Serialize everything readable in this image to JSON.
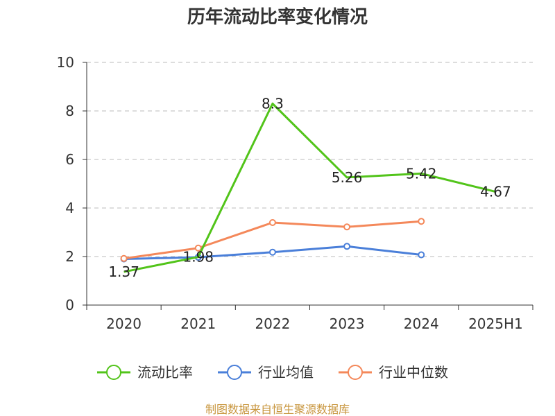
{
  "colors": {
    "current_ratio": "#52c41a",
    "industry_mean": "#4a7fd9",
    "industry_median": "#f4885a",
    "axis": "#333333",
    "grid": "#bbbbbb",
    "source": "#c8963e"
  },
  "source_text": "制图数据来自恒生聚源数据库",
  "chart_data": {
    "type": "line",
    "title": "历年流动比率变化情况",
    "xlabel": "",
    "ylabel": "",
    "categories": [
      "2020",
      "2021",
      "2022",
      "2023",
      "2024",
      "2025H1"
    ],
    "ylim": [
      0,
      10
    ],
    "yticks": [
      0,
      2,
      4,
      6,
      8,
      10
    ],
    "grid": true,
    "legend_position": "bottom",
    "series": [
      {
        "name": "流动比率",
        "values": [
          1.37,
          1.98,
          8.3,
          5.26,
          5.42,
          4.67
        ],
        "labels": [
          "1.37",
          "1.98",
          "8.3",
          "5.26",
          "5.42",
          "4.67"
        ],
        "color": "#52c41a",
        "markers": false
      },
      {
        "name": "行业均值",
        "values": [
          1.9,
          1.97,
          2.18,
          2.42,
          2.07,
          null
        ],
        "color": "#4a7fd9",
        "markers": true
      },
      {
        "name": "行业中位数",
        "values": [
          1.92,
          2.35,
          3.4,
          3.22,
          3.45,
          null
        ],
        "color": "#f4885a",
        "markers": true
      }
    ]
  }
}
